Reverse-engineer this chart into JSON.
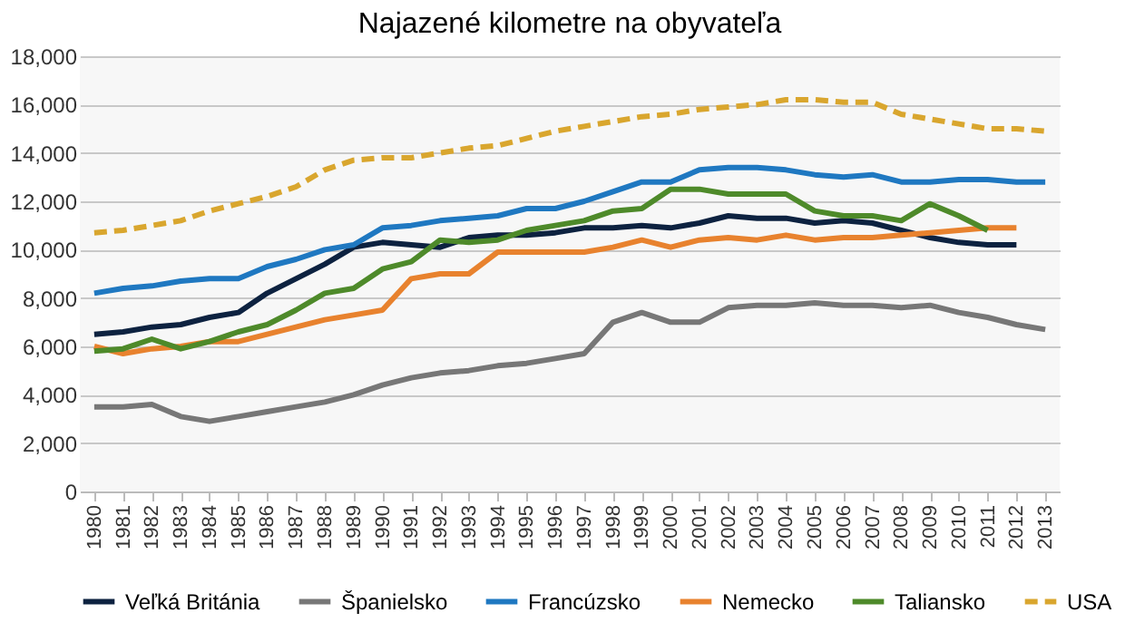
{
  "chart_data": {
    "type": "line",
    "title": "Najazené kilometre na obyvateľa",
    "categories": [
      "1980",
      "1981",
      "1982",
      "1983",
      "1984",
      "1985",
      "1986",
      "1987",
      "1988",
      "1989",
      "1990",
      "1991",
      "1992",
      "1993",
      "1994",
      "1995",
      "1996",
      "1997",
      "1998",
      "1999",
      "2000",
      "2001",
      "2002",
      "2003",
      "2004",
      "2005",
      "2006",
      "2007",
      "2008",
      "2009",
      "2010",
      "2011",
      "2012",
      "2013"
    ],
    "series": [
      {
        "name": "Veľká Británia",
        "color": "#0d2240",
        "values": [
          6500,
          6600,
          6800,
          6900,
          7200,
          7400,
          8200,
          8800,
          9400,
          10100,
          10300,
          10200,
          10100,
          10500,
          10600,
          10600,
          10700,
          10900,
          10900,
          11000,
          10900,
          11100,
          11400,
          11300,
          11300,
          11100,
          11200,
          11100,
          10800,
          10500,
          10300,
          10200,
          10200,
          null
        ]
      },
      {
        "name": "Španielsko",
        "color": "#777777",
        "values": [
          3500,
          3500,
          3600,
          3100,
          2900,
          3100,
          3300,
          3500,
          3700,
          4000,
          4400,
          4700,
          4900,
          5000,
          5200,
          5300,
          5500,
          5700,
          7000,
          7400,
          7000,
          7000,
          7600,
          7700,
          7700,
          7800,
          7700,
          7700,
          7600,
          7700,
          7400,
          7200,
          6900,
          6700
        ]
      },
      {
        "name": "Francúzsko",
        "color": "#1f78c1",
        "values": [
          8200,
          8400,
          8500,
          8700,
          8800,
          8800,
          9300,
          9600,
          10000,
          10200,
          10900,
          11000,
          11200,
          11300,
          11400,
          11700,
          11700,
          12000,
          12400,
          12800,
          12800,
          13300,
          13400,
          13400,
          13300,
          13100,
          13000,
          13100,
          12800,
          12800,
          12900,
          12900,
          12800,
          12800
        ]
      },
      {
        "name": "Nemecko",
        "color": "#e8822e",
        "values": [
          6000,
          5700,
          5900,
          6000,
          6200,
          6200,
          6500,
          6800,
          7100,
          7300,
          7500,
          8800,
          9000,
          9000,
          9900,
          9900,
          9900,
          9900,
          10100,
          10400,
          10100,
          10400,
          10500,
          10400,
          10600,
          10400,
          10500,
          10500,
          10600,
          10700,
          10800,
          10900,
          10900,
          null
        ]
      },
      {
        "name": "Taliansko",
        "color": "#4e8a2a",
        "values": [
          5800,
          5900,
          6300,
          5900,
          6200,
          6600,
          6900,
          7500,
          8200,
          8400,
          9200,
          9500,
          10400,
          10300,
          10400,
          10800,
          11000,
          11200,
          11600,
          11700,
          12500,
          12500,
          12300,
          12300,
          12300,
          11600,
          11400,
          11400,
          11200,
          11900,
          11400,
          10800,
          null,
          null
        ]
      },
      {
        "name": "USA",
        "color": "#d9a62e",
        "line_style": "dashed",
        "values": [
          10700,
          10800,
          11000,
          11200,
          11600,
          11900,
          12200,
          12600,
          13300,
          13700,
          13800,
          13800,
          14000,
          14200,
          14300,
          14600,
          14900,
          15100,
          15300,
          15500,
          15600,
          15800,
          15900,
          16000,
          16200,
          16200,
          16100,
          16100,
          15600,
          15400,
          15200,
          15000,
          15000,
          14900
        ]
      }
    ],
    "ylim": [
      0,
      18000
    ],
    "yticks": [
      0,
      {
        "value": 2000,
        "label": "2,000"
      },
      {
        "value": 4000,
        "label": "4,000"
      },
      {
        "value": 6000,
        "label": "6,000"
      },
      {
        "value": 8000,
        "label": "8,000"
      },
      {
        "value": 10000,
        "label": "10,000"
      },
      {
        "value": 12000,
        "label": "12,000"
      },
      {
        "value": 14000,
        "label": "14,000"
      },
      {
        "value": 16000,
        "label": "16,000"
      },
      {
        "value": 18000,
        "label": "18,000"
      }
    ],
    "grid": "y",
    "legend": "bottom",
    "marker": "none"
  }
}
